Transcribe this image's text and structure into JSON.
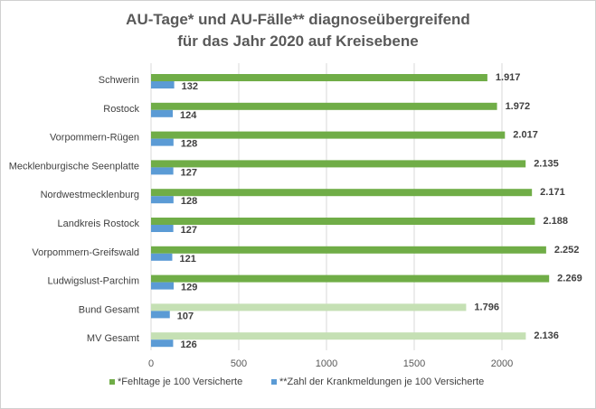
{
  "chart_data": {
    "type": "bar",
    "orientation": "horizontal",
    "title": "AU-Tage* und AU-Fälle** diagnoseübergreifend",
    "subtitle": "für das Jahr 2020 auf Kreisebene",
    "categories": [
      "Schwerin",
      "Rostock",
      "Vorpommern-Rügen",
      "Mecklenburgische Seenplatte",
      "Nordwestmecklenburg",
      "Landkreis Rostock",
      "Vorpommern-Greifswald",
      "Ludwigslust-Parchim",
      "Bund Gesamt",
      "MV Gesamt"
    ],
    "series": [
      {
        "name": "*Fehltage je 100 Versicherte",
        "values": [
          1917,
          1972,
          2017,
          2135,
          2171,
          2188,
          2252,
          2269,
          1796,
          2136
        ],
        "value_labels": [
          "1.917",
          "1.972",
          "2.017",
          "2.135",
          "2.171",
          "2.188",
          "2.252",
          "2.269",
          "1.796",
          "2.136"
        ],
        "color": "#70ad47",
        "highlight_color": "#c5e0b4"
      },
      {
        "name": "**Zahl der Krankmeldungen je 100 Versicherte",
        "values": [
          132,
          124,
          128,
          127,
          128,
          127,
          121,
          129,
          107,
          126
        ],
        "value_labels": [
          "132",
          "124",
          "128",
          "127",
          "128",
          "127",
          "121",
          "129",
          "107",
          "126"
        ],
        "color": "#5b9bd5"
      }
    ],
    "highlighted_categories": [
      "Bund Gesamt",
      "MV Gesamt"
    ],
    "xlim": [
      0,
      2500
    ],
    "xticks": [
      "0",
      "500",
      "1000",
      "1500",
      "2000"
    ],
    "grid": true,
    "legend": "bottom"
  }
}
